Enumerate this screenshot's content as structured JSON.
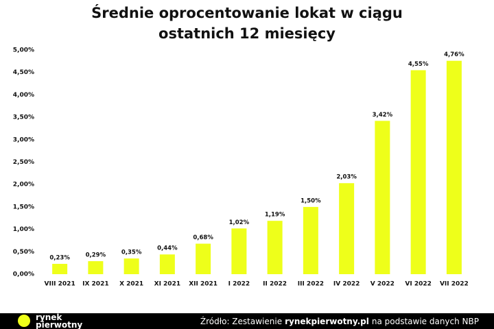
{
  "chart_data": {
    "type": "bar",
    "title": [
      "Średnie oprocentowanie lokat w ciągu",
      "ostatnich 12 miesięcy"
    ],
    "categories": [
      "VIII 2021",
      "IX 2021",
      "X 2021",
      "XI 2021",
      "XII 2021",
      "I 2022",
      "II 2022",
      "III 2022",
      "IV 2022",
      "V 2022",
      "VI 2022",
      "VII 2022"
    ],
    "values": [
      0.23,
      0.29,
      0.35,
      0.44,
      0.68,
      1.02,
      1.19,
      1.5,
      2.03,
      3.42,
      4.55,
      4.76
    ],
    "value_labels": [
      "0,23%",
      "0,29%",
      "0,35%",
      "0,44%",
      "0,68%",
      "1,02%",
      "1,19%",
      "1,50%",
      "2,03%",
      "3,42%",
      "4,55%",
      "4,76%"
    ],
    "color": "#eeff1a",
    "ylim": [
      0,
      5
    ],
    "yticks": [
      {
        "value": 0,
        "label": "0,00%"
      },
      {
        "value": 0.5,
        "label": "0,50%"
      },
      {
        "value": 1,
        "label": "1,00%"
      },
      {
        "value": 1.5,
        "label": "1,50%"
      },
      {
        "value": 2,
        "label": "2,00%"
      },
      {
        "value": 2.5,
        "label": "2,50%"
      },
      {
        "value": 3,
        "label": "3,00%"
      },
      {
        "value": 3.5,
        "label": "3,50%"
      },
      {
        "value": 4,
        "label": "4,00%"
      },
      {
        "value": 4.5,
        "label": "4,50%"
      },
      {
        "value": 5,
        "label": "5,00%"
      }
    ],
    "grid": false
  },
  "footer": {
    "logo": [
      "rynek",
      "pierwotny"
    ],
    "source": [
      "Źródło: Zestawienie",
      "rynekpierwotny.pl",
      "na podstawie danych NBP"
    ]
  }
}
